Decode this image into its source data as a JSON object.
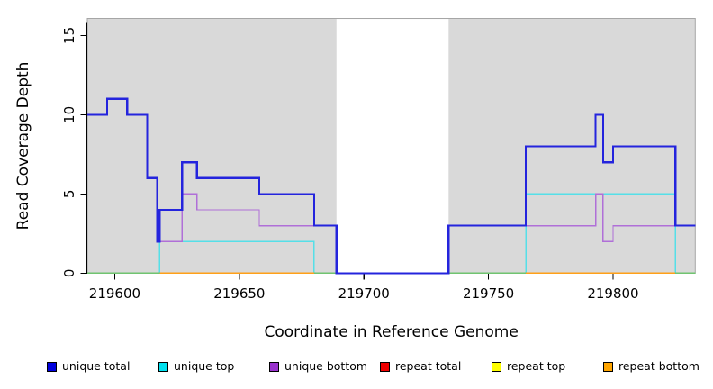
{
  "chart_data": {
    "type": "line",
    "subtype": "step-coverage",
    "title": "",
    "xlabel": "Coordinate in Reference Genome",
    "ylabel": "Read Coverage Depth",
    "xlim": [
      219589,
      219833
    ],
    "ylim": [
      0,
      16
    ],
    "x_ticks": [
      219600,
      219650,
      219700,
      219750,
      219800
    ],
    "y_ticks": [
      0,
      5,
      10,
      15
    ],
    "grid": false,
    "panel_color": "#d9d9d9",
    "panel_border_color": "#a6a6a6",
    "axis_color": "#000000",
    "gap_region": {
      "x_start": 219689,
      "x_end": 219734,
      "color": "#ffffff"
    },
    "series": [
      {
        "name": "unique top",
        "color": "#55dfe8",
        "width": 1.4,
        "segments": [
          [
            219589,
            219618,
            0
          ],
          [
            219618,
            219680,
            2
          ],
          [
            219680,
            219765,
            0
          ],
          [
            219765,
            219825,
            5
          ],
          [
            219825,
            219833,
            0
          ]
        ]
      },
      {
        "name": "unique bottom",
        "color": "#b06fd8",
        "width": 1.4,
        "segments": [
          [
            219618,
            219627,
            2
          ],
          [
            219627,
            219633,
            5
          ],
          [
            219633,
            219658,
            4
          ],
          [
            219658,
            219689,
            3
          ],
          [
            219689,
            219734,
            0
          ],
          [
            219734,
            219793,
            3
          ],
          [
            219793,
            219796,
            5
          ],
          [
            219796,
            219800,
            2
          ],
          [
            219800,
            219833,
            3
          ]
        ]
      },
      {
        "name": "zero baseline",
        "color": "#70c470",
        "width": 1.6,
        "segments": [
          [
            219589,
            219833,
            0
          ]
        ]
      },
      {
        "name": "repeat bottom",
        "color": "#ffa018",
        "width": 1.6,
        "segments": [
          [
            219618,
            219680,
            0
          ],
          [
            219765,
            219825,
            0
          ]
        ]
      },
      {
        "name": "unique total",
        "color": "#2424dd",
        "width": 2.2,
        "segments": [
          [
            219589,
            219597,
            10
          ],
          [
            219597,
            219605,
            11
          ],
          [
            219605,
            219613,
            10
          ],
          [
            219613,
            219617,
            6
          ],
          [
            219617,
            219618,
            2
          ],
          [
            219618,
            219627,
            4
          ],
          [
            219627,
            219633,
            7
          ],
          [
            219633,
            219658,
            6
          ],
          [
            219658,
            219680,
            5
          ],
          [
            219680,
            219689,
            3
          ],
          [
            219689,
            219734,
            0
          ],
          [
            219734,
            219765,
            3
          ],
          [
            219765,
            219793,
            8
          ],
          [
            219793,
            219796,
            10
          ],
          [
            219796,
            219800,
            7
          ],
          [
            219800,
            219825,
            8
          ],
          [
            219825,
            219833,
            3
          ]
        ]
      }
    ],
    "legend_position": "bottom"
  },
  "legend": {
    "items": [
      {
        "label": "unique total",
        "color": "#0000dd"
      },
      {
        "label": "unique top",
        "color": "#00e0ee"
      },
      {
        "label": "unique bottom",
        "color": "#9932cc"
      },
      {
        "label": "repeat total",
        "color": "#ee0000"
      },
      {
        "label": "repeat top",
        "color": "#ffff00"
      },
      {
        "label": "repeat bottom",
        "color": "#ffa500"
      }
    ]
  }
}
